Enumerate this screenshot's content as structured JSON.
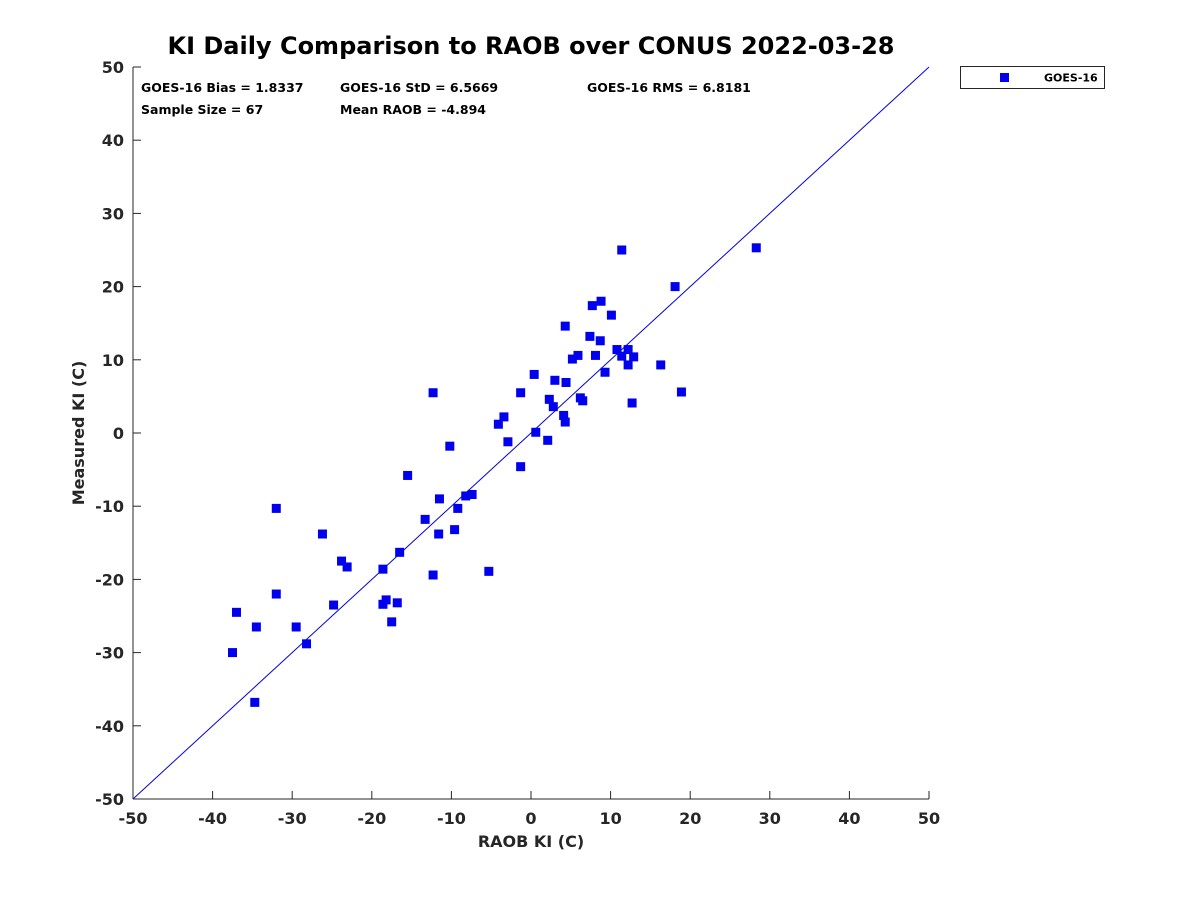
{
  "chart_data": {
    "type": "scatter",
    "title": "KI Daily Comparison to RAOB over CONUS 2022-03-28",
    "xlabel": "RAOB KI (C)",
    "ylabel": "Measured KI (C)",
    "xlim": [
      -50,
      50
    ],
    "ylim": [
      -50,
      50
    ],
    "xticks": [
      "-50",
      "-40",
      "-30",
      "-20",
      "-10",
      "0",
      "10",
      "20",
      "30",
      "40",
      "50"
    ],
    "yticks": [
      "50",
      "40",
      "30",
      "20",
      "10",
      "0",
      "-10",
      "-20",
      "-30",
      "-40",
      "-50"
    ],
    "grid": false,
    "legend_position": "outside-top-right",
    "reference_line": {
      "x": [
        -50,
        50
      ],
      "y": [
        -50,
        50
      ]
    },
    "marker_color": "#0000ee",
    "annotations": {
      "bias": "GOES-16 Bias = 1.8337",
      "std": "GOES-16 StD = 6.5669",
      "rms": "GOES-16 RMS = 6.8181",
      "sample_size": "Sample Size = 67",
      "mean_raob": "Mean RAOB = -4.894"
    },
    "series": [
      {
        "name": "GOES-16",
        "points": [
          [
            -37.5,
            -30
          ],
          [
            -37,
            -24.5
          ],
          [
            -34.5,
            -26.5
          ],
          [
            -34.7,
            -36.8
          ],
          [
            -32,
            -10.3
          ],
          [
            -32,
            -22
          ],
          [
            -29.5,
            -26.5
          ],
          [
            -28.2,
            -28.8
          ],
          [
            -26.2,
            -13.8
          ],
          [
            -24.8,
            -23.5
          ],
          [
            -23.8,
            -17.5
          ],
          [
            -23.1,
            -18.3
          ],
          [
            -18.6,
            -18.6
          ],
          [
            -18.6,
            -23.4
          ],
          [
            -18.2,
            -22.8
          ],
          [
            -17.5,
            -25.8
          ],
          [
            -16.8,
            -23.2
          ],
          [
            -16.5,
            -16.3
          ],
          [
            -15.5,
            -5.8
          ],
          [
            -13.3,
            -11.8
          ],
          [
            -12.3,
            5.5
          ],
          [
            -12.3,
            -19.4
          ],
          [
            -11.6,
            -13.8
          ],
          [
            -11.5,
            -9
          ],
          [
            -10.2,
            -1.8
          ],
          [
            -9.6,
            -13.2
          ],
          [
            -9.2,
            -10.3
          ],
          [
            -8.2,
            -8.6
          ],
          [
            -7.4,
            -8.4
          ],
          [
            -5.3,
            -18.9
          ],
          [
            -4.1,
            1.2
          ],
          [
            -3.4,
            2.2
          ],
          [
            -2.9,
            -1.2
          ],
          [
            -1.3,
            5.5
          ],
          [
            -1.3,
            -4.6
          ],
          [
            0.4,
            8
          ],
          [
            0.6,
            0.1
          ],
          [
            2.1,
            -1
          ],
          [
            2.3,
            4.6
          ],
          [
            2.8,
            3.6
          ],
          [
            3,
            7.2
          ],
          [
            4.1,
            2.4
          ],
          [
            4.3,
            14.6
          ],
          [
            4.3,
            1.5
          ],
          [
            4.4,
            6.9
          ],
          [
            5.2,
            10.1
          ],
          [
            5.9,
            10.6
          ],
          [
            6.2,
            4.8
          ],
          [
            6.5,
            4.4
          ],
          [
            7.4,
            13.2
          ],
          [
            7.7,
            17.4
          ],
          [
            8.1,
            10.6
          ],
          [
            8.7,
            12.6
          ],
          [
            8.8,
            18
          ],
          [
            9.3,
            8.3
          ],
          [
            10.1,
            16.1
          ],
          [
            10.8,
            11.4
          ],
          [
            11.4,
            25
          ],
          [
            11.4,
            10.5
          ],
          [
            12.2,
            11.4
          ],
          [
            12.2,
            9.3
          ],
          [
            12.7,
            4.1
          ],
          [
            12.9,
            10.4
          ],
          [
            16.3,
            9.3
          ],
          [
            18.1,
            20
          ],
          [
            18.9,
            5.6
          ],
          [
            28.3,
            25.3
          ]
        ]
      }
    ]
  }
}
